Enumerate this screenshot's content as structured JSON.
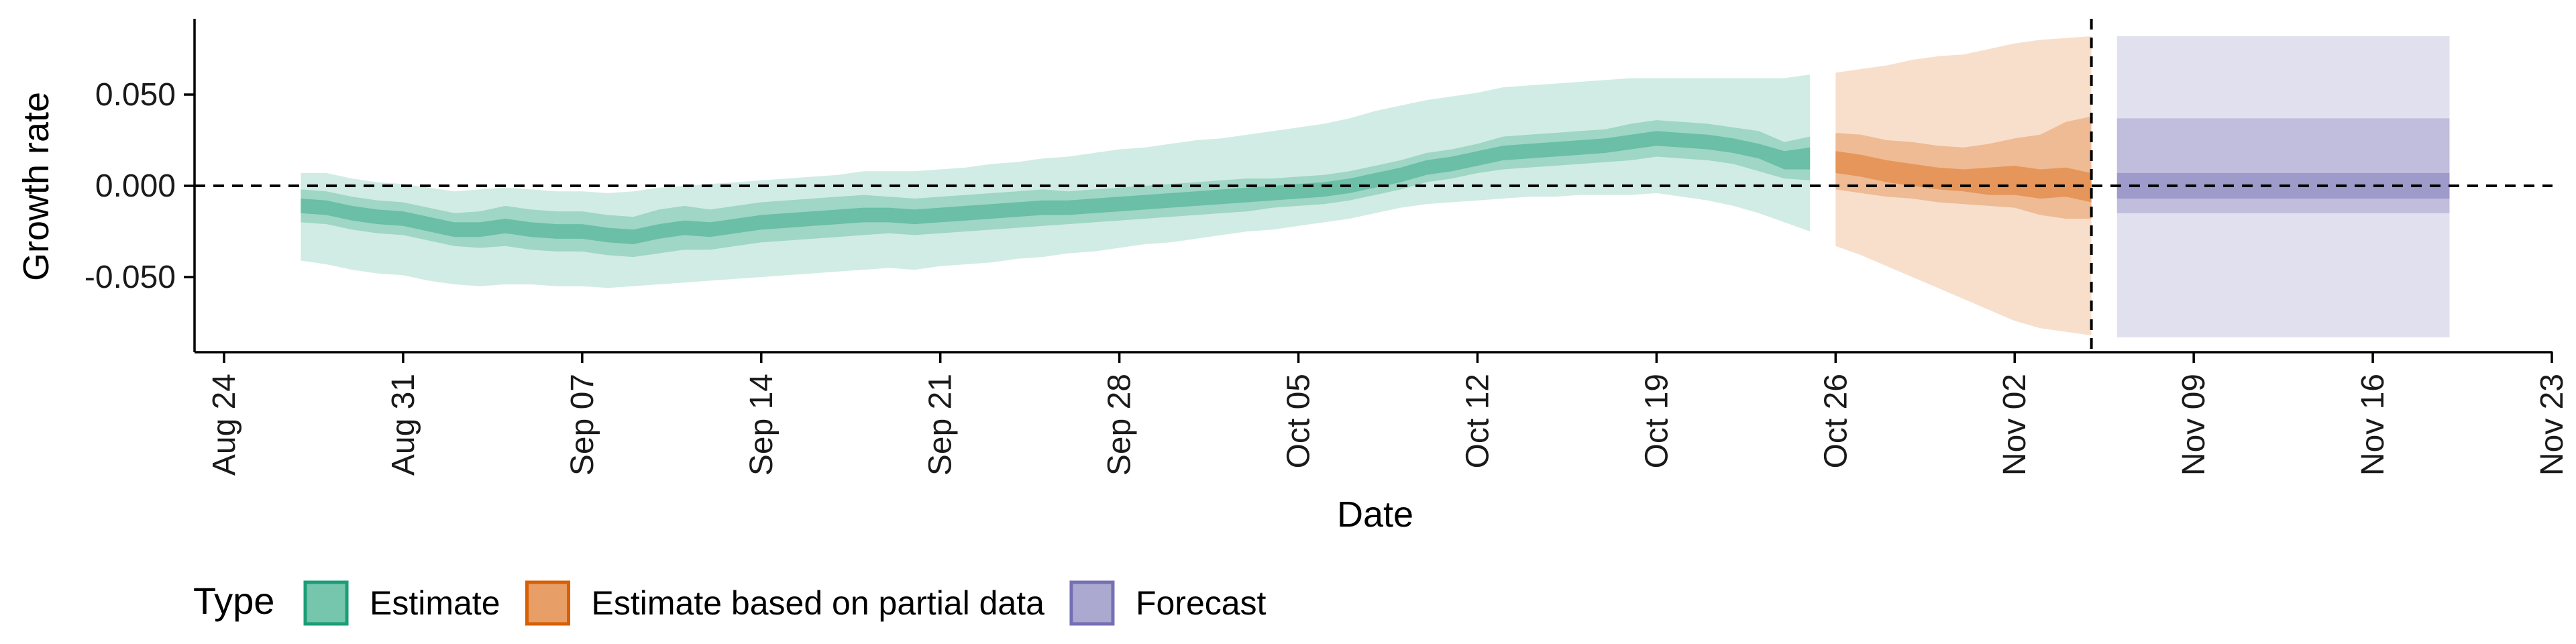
{
  "chart_data": {
    "type": "area",
    "xlabel": "Date",
    "ylabel": "Growth rate",
    "x_ticks": [
      "Aug 24",
      "Aug 31",
      "Sep 07",
      "Sep 14",
      "Sep 21",
      "Sep 28",
      "Oct 05",
      "Oct 12",
      "Oct 19",
      "Oct 26",
      "Nov 02",
      "Nov 09",
      "Nov 16",
      "Nov 23"
    ],
    "x_range": [
      "2020-08-22",
      "2020-11-23"
    ],
    "y_ticks": [
      "-0.050",
      "0.000",
      "0.050"
    ],
    "ylim": [
      -0.09,
      0.09
    ],
    "reference_lines": {
      "horizontal_y": 0,
      "vertical_date": "2020-11-05"
    },
    "legend": {
      "title": "Type",
      "position": "bottom",
      "items": [
        {
          "label": "Estimate",
          "color": "#1b9e77"
        },
        {
          "label": "Estimate based on partial data",
          "color": "#d95f02"
        },
        {
          "label": "Forecast",
          "color": "#7570b3"
        }
      ]
    },
    "series": [
      {
        "name": "Estimate",
        "color": "#1b9e77",
        "dates": [
          "2020-08-27",
          "2020-08-28",
          "2020-08-29",
          "2020-08-30",
          "2020-08-31",
          "2020-09-01",
          "2020-09-02",
          "2020-09-03",
          "2020-09-04",
          "2020-09-05",
          "2020-09-06",
          "2020-09-07",
          "2020-09-08",
          "2020-09-09",
          "2020-09-10",
          "2020-09-11",
          "2020-09-12",
          "2020-09-13",
          "2020-09-14",
          "2020-09-15",
          "2020-09-16",
          "2020-09-17",
          "2020-09-18",
          "2020-09-19",
          "2020-09-20",
          "2020-09-21",
          "2020-09-22",
          "2020-09-23",
          "2020-09-24",
          "2020-09-25",
          "2020-09-26",
          "2020-09-27",
          "2020-09-28",
          "2020-09-29",
          "2020-09-30",
          "2020-10-01",
          "2020-10-02",
          "2020-10-03",
          "2020-10-04",
          "2020-10-05",
          "2020-10-06",
          "2020-10-07",
          "2020-10-08",
          "2020-10-09",
          "2020-10-10",
          "2020-10-11",
          "2020-10-12",
          "2020-10-13",
          "2020-10-14",
          "2020-10-15",
          "2020-10-16",
          "2020-10-17",
          "2020-10-18",
          "2020-10-19",
          "2020-10-20",
          "2020-10-21",
          "2020-10-22",
          "2020-10-23",
          "2020-10-24",
          "2020-10-25"
        ],
        "median": [
          -0.011,
          -0.012,
          -0.015,
          -0.017,
          -0.018,
          -0.021,
          -0.024,
          -0.024,
          -0.022,
          -0.024,
          -0.025,
          -0.025,
          -0.027,
          -0.028,
          -0.025,
          -0.023,
          -0.024,
          -0.022,
          -0.02,
          -0.019,
          -0.018,
          -0.017,
          -0.016,
          -0.016,
          -0.017,
          -0.016,
          -0.015,
          -0.014,
          -0.013,
          -0.012,
          -0.012,
          -0.011,
          -0.01,
          -0.009,
          -0.008,
          -0.007,
          -0.006,
          -0.005,
          -0.004,
          -0.003,
          -0.002,
          0.0,
          0.003,
          0.006,
          0.01,
          0.012,
          0.015,
          0.018,
          0.019,
          0.02,
          0.021,
          0.022,
          0.024,
          0.026,
          0.025,
          0.024,
          0.022,
          0.019,
          0.014,
          0.015
        ],
        "lower_20": [
          -0.015,
          -0.016,
          -0.019,
          -0.021,
          -0.022,
          -0.025,
          -0.028,
          -0.028,
          -0.026,
          -0.028,
          -0.029,
          -0.029,
          -0.031,
          -0.032,
          -0.029,
          -0.027,
          -0.028,
          -0.026,
          -0.024,
          -0.023,
          -0.022,
          -0.021,
          -0.02,
          -0.02,
          -0.021,
          -0.02,
          -0.019,
          -0.018,
          -0.017,
          -0.016,
          -0.016,
          -0.015,
          -0.014,
          -0.013,
          -0.012,
          -0.011,
          -0.01,
          -0.009,
          -0.008,
          -0.007,
          -0.006,
          -0.004,
          -0.001,
          0.002,
          0.006,
          0.008,
          0.011,
          0.014,
          0.015,
          0.016,
          0.017,
          0.018,
          0.02,
          0.022,
          0.021,
          0.02,
          0.018,
          0.015,
          0.009,
          0.009
        ],
        "upper_20": [
          -0.007,
          -0.008,
          -0.011,
          -0.013,
          -0.014,
          -0.017,
          -0.02,
          -0.02,
          -0.018,
          -0.02,
          -0.021,
          -0.021,
          -0.023,
          -0.024,
          -0.021,
          -0.019,
          -0.02,
          -0.018,
          -0.016,
          -0.015,
          -0.014,
          -0.013,
          -0.012,
          -0.012,
          -0.013,
          -0.012,
          -0.011,
          -0.01,
          -0.009,
          -0.008,
          -0.008,
          -0.007,
          -0.006,
          -0.005,
          -0.004,
          -0.003,
          -0.002,
          -0.001,
          0.0,
          0.001,
          0.002,
          0.004,
          0.007,
          0.01,
          0.014,
          0.016,
          0.019,
          0.022,
          0.023,
          0.024,
          0.025,
          0.026,
          0.028,
          0.03,
          0.029,
          0.028,
          0.026,
          0.023,
          0.019,
          0.021
        ],
        "lower_50": [
          -0.02,
          -0.021,
          -0.024,
          -0.026,
          -0.027,
          -0.03,
          -0.033,
          -0.034,
          -0.033,
          -0.035,
          -0.036,
          -0.036,
          -0.038,
          -0.039,
          -0.037,
          -0.035,
          -0.035,
          -0.033,
          -0.031,
          -0.03,
          -0.029,
          -0.028,
          -0.027,
          -0.026,
          -0.027,
          -0.026,
          -0.025,
          -0.024,
          -0.023,
          -0.022,
          -0.021,
          -0.02,
          -0.019,
          -0.018,
          -0.017,
          -0.016,
          -0.015,
          -0.014,
          -0.012,
          -0.011,
          -0.01,
          -0.008,
          -0.005,
          -0.002,
          0.002,
          0.004,
          0.007,
          0.009,
          0.01,
          0.011,
          0.012,
          0.013,
          0.014,
          0.016,
          0.015,
          0.014,
          0.012,
          0.008,
          0.004,
          0.003
        ],
        "upper_50": [
          -0.002,
          -0.003,
          -0.006,
          -0.008,
          -0.009,
          -0.012,
          -0.015,
          -0.014,
          -0.011,
          -0.013,
          -0.014,
          -0.014,
          -0.016,
          -0.017,
          -0.013,
          -0.011,
          -0.013,
          -0.011,
          -0.009,
          -0.008,
          -0.007,
          -0.006,
          -0.005,
          -0.006,
          -0.007,
          -0.006,
          -0.005,
          -0.004,
          -0.003,
          -0.002,
          -0.003,
          -0.002,
          -0.001,
          0.0,
          0.001,
          0.002,
          0.003,
          0.004,
          0.004,
          0.005,
          0.006,
          0.008,
          0.011,
          0.014,
          0.018,
          0.02,
          0.023,
          0.027,
          0.028,
          0.029,
          0.03,
          0.031,
          0.034,
          0.036,
          0.035,
          0.034,
          0.032,
          0.03,
          0.024,
          0.027
        ],
        "lower_90": [
          -0.041,
          -0.043,
          -0.046,
          -0.048,
          -0.049,
          -0.052,
          -0.054,
          -0.055,
          -0.054,
          -0.054,
          -0.055,
          -0.055,
          -0.056,
          -0.055,
          -0.054,
          -0.053,
          -0.052,
          -0.051,
          -0.05,
          -0.049,
          -0.048,
          -0.047,
          -0.046,
          -0.045,
          -0.046,
          -0.044,
          -0.043,
          -0.042,
          -0.04,
          -0.039,
          -0.037,
          -0.036,
          -0.034,
          -0.032,
          -0.031,
          -0.029,
          -0.027,
          -0.025,
          -0.024,
          -0.022,
          -0.02,
          -0.018,
          -0.015,
          -0.012,
          -0.01,
          -0.009,
          -0.008,
          -0.007,
          -0.006,
          -0.006,
          -0.005,
          -0.005,
          -0.005,
          -0.004,
          -0.006,
          -0.008,
          -0.011,
          -0.015,
          -0.02,
          -0.025
        ],
        "upper_90": [
          0.007,
          0.007,
          0.004,
          0.002,
          0.001,
          -0.001,
          -0.003,
          -0.002,
          -0.001,
          -0.002,
          -0.003,
          -0.003,
          -0.004,
          -0.003,
          -0.001,
          0.0,
          0.001,
          0.002,
          0.003,
          0.004,
          0.005,
          0.006,
          0.008,
          0.008,
          0.008,
          0.009,
          0.01,
          0.012,
          0.013,
          0.015,
          0.016,
          0.018,
          0.02,
          0.021,
          0.023,
          0.025,
          0.026,
          0.028,
          0.03,
          0.032,
          0.034,
          0.037,
          0.041,
          0.044,
          0.047,
          0.049,
          0.051,
          0.054,
          0.055,
          0.056,
          0.057,
          0.058,
          0.059,
          0.059,
          0.059,
          0.059,
          0.059,
          0.059,
          0.059,
          0.061
        ]
      },
      {
        "name": "Estimate based on partial data",
        "color": "#d95f02",
        "dates": [
          "2020-10-26",
          "2020-10-27",
          "2020-10-28",
          "2020-10-29",
          "2020-10-30",
          "2020-10-31",
          "2020-11-01",
          "2020-11-02",
          "2020-11-03",
          "2020-11-04",
          "2020-11-05"
        ],
        "median": [
          0.013,
          0.011,
          0.008,
          0.006,
          0.004,
          0.003,
          0.002,
          0.002,
          0.001,
          0.002,
          -0.001
        ],
        "lower_20": [
          0.007,
          0.005,
          0.002,
          0.0,
          -0.002,
          -0.003,
          -0.005,
          -0.005,
          -0.007,
          -0.006,
          -0.009
        ],
        "upper_20": [
          0.019,
          0.017,
          0.014,
          0.012,
          0.01,
          0.009,
          0.01,
          0.011,
          0.009,
          0.01,
          0.007
        ],
        "lower_50": [
          -0.002,
          -0.004,
          -0.006,
          -0.007,
          -0.009,
          -0.01,
          -0.011,
          -0.012,
          -0.016,
          -0.018,
          -0.018
        ],
        "upper_50": [
          0.029,
          0.028,
          0.025,
          0.024,
          0.022,
          0.021,
          0.023,
          0.026,
          0.028,
          0.035,
          0.038
        ],
        "lower_90": [
          -0.033,
          -0.038,
          -0.044,
          -0.05,
          -0.056,
          -0.062,
          -0.068,
          -0.074,
          -0.078,
          -0.08,
          -0.082
        ],
        "upper_90": [
          0.062,
          0.064,
          0.066,
          0.069,
          0.071,
          0.072,
          0.075,
          0.078,
          0.08,
          0.081,
          0.082
        ]
      },
      {
        "name": "Forecast",
        "color": "#7570b3",
        "dates": [
          "2020-11-06",
          "2020-11-19"
        ],
        "median": [
          0.0,
          0.0
        ],
        "lower_20": [
          -0.007,
          -0.007
        ],
        "upper_20": [
          0.007,
          0.007
        ],
        "lower_50": [
          -0.015,
          -0.015
        ],
        "upper_50": [
          0.037,
          0.037
        ],
        "lower_90": [
          -0.083,
          -0.083
        ],
        "upper_90": [
          0.082,
          0.082
        ]
      }
    ]
  }
}
